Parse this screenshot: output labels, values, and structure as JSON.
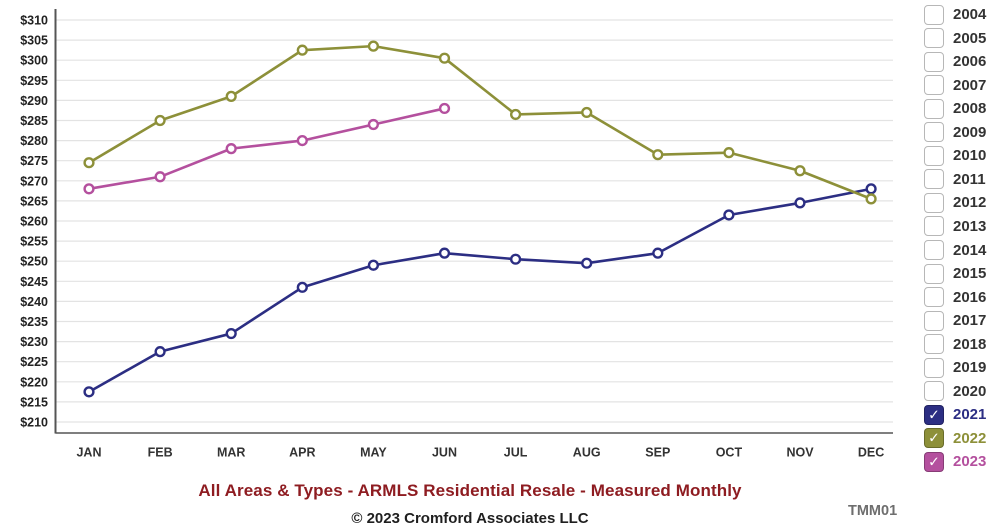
{
  "chart_data": {
    "type": "line",
    "title": "All Areas & Types - ARMLS Residential Resale - Measured Monthly",
    "x_categories": [
      "JAN",
      "FEB",
      "MAR",
      "APR",
      "MAY",
      "JUN",
      "JUL",
      "AUG",
      "SEP",
      "OCT",
      "NOV",
      "DEC"
    ],
    "y_axis": {
      "min": 210,
      "max": 310,
      "step": 5,
      "tick_prefix": "$"
    },
    "grid": true,
    "legend_position": "right",
    "series": [
      {
        "name": "2021",
        "color": "#2c2e83",
        "values": [
          217.5,
          227.5,
          232,
          243.5,
          249,
          252,
          250.5,
          249.5,
          252,
          261.5,
          264.5,
          268
        ]
      },
      {
        "name": "2022",
        "color": "#8d9039",
        "values": [
          274.5,
          285,
          291,
          302.5,
          303.5,
          300.5,
          286.5,
          287,
          276.5,
          277,
          272.5,
          265.5
        ]
      },
      {
        "name": "2023",
        "color": "#b4509e",
        "values": [
          268,
          271,
          278,
          280,
          284,
          288,
          null,
          null,
          null,
          null,
          null,
          null
        ]
      }
    ],
    "colors": {
      "grid_line": "#e3e3e3",
      "axis_line": "#555555",
      "y_tick_label": "#222222",
      "x_tick_label": "#333333"
    }
  },
  "legend": {
    "years": [
      {
        "label": "2004",
        "checked": false
      },
      {
        "label": "2005",
        "checked": false
      },
      {
        "label": "2006",
        "checked": false
      },
      {
        "label": "2007",
        "checked": false
      },
      {
        "label": "2008",
        "checked": false
      },
      {
        "label": "2009",
        "checked": false
      },
      {
        "label": "2010",
        "checked": false
      },
      {
        "label": "2011",
        "checked": false
      },
      {
        "label": "2012",
        "checked": false
      },
      {
        "label": "2013",
        "checked": false
      },
      {
        "label": "2014",
        "checked": false
      },
      {
        "label": "2015",
        "checked": false
      },
      {
        "label": "2016",
        "checked": false
      },
      {
        "label": "2017",
        "checked": false
      },
      {
        "label": "2018",
        "checked": false
      },
      {
        "label": "2019",
        "checked": false
      },
      {
        "label": "2020",
        "checked": false
      },
      {
        "label": "2021",
        "checked": true
      },
      {
        "label": "2022",
        "checked": true
      },
      {
        "label": "2023",
        "checked": true
      }
    ]
  },
  "footer": {
    "copyright": "© 2023 Cromford Associates LLC",
    "report_code": "TMM01"
  }
}
